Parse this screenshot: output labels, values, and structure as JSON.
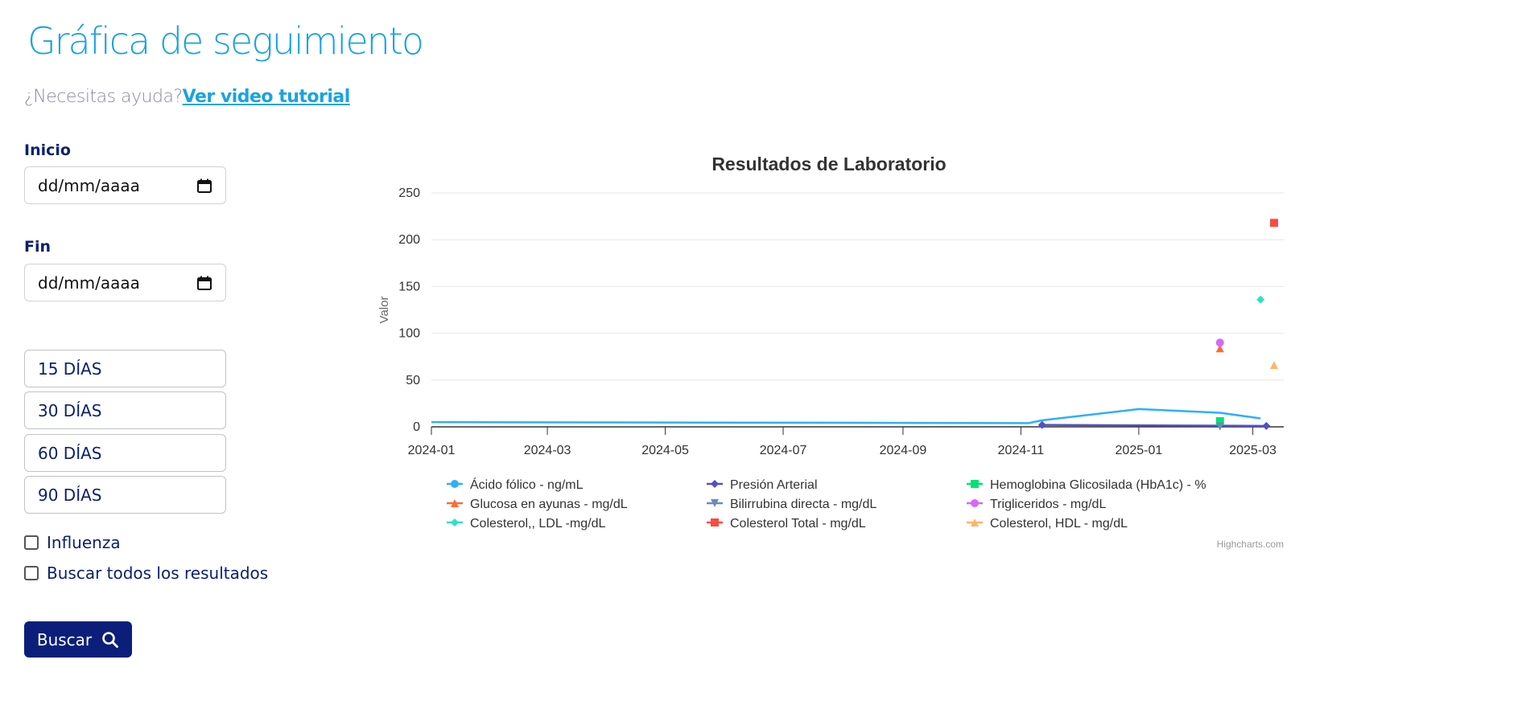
{
  "page": {
    "title": "Gráfica de seguimiento",
    "help_text": "¿Necesitas ayuda?",
    "help_link": "Ver video tutorial"
  },
  "filters": {
    "start_label": "Inicio",
    "start_placeholder": "dd/mm/aaaa",
    "end_label": "Fin",
    "end_placeholder": "dd/mm/aaaa",
    "ranges": [
      "15 DÍAS",
      "30 DÍAS",
      "60 DÍAS",
      "90 DÍAS"
    ],
    "checkboxes": [
      {
        "label": "Influenza",
        "checked": false
      },
      {
        "label": "Buscar todos los resultados",
        "checked": false
      }
    ],
    "search_label": "Buscar",
    "search_icon": "search-icon",
    "calendar_icon": "calendar-icon"
  },
  "chart_data": {
    "type": "line",
    "title": "Resultados de Laboratorio",
    "xlabel": "",
    "ylabel": "Valor",
    "ylim": [
      0,
      250
    ],
    "yticks": [
      0,
      50,
      100,
      150,
      200,
      250
    ],
    "xticks": [
      "2024-01",
      "2024-03",
      "2024-05",
      "2024-07",
      "2024-09",
      "2024-11",
      "2025-01",
      "2025-03"
    ],
    "xlim": [
      "2024-01-01",
      "2025-03-17"
    ],
    "grid": true,
    "legend_position": "bottom",
    "credits": "Highcharts.com",
    "series": [
      {
        "name": "Ácido fólico - ng/mL",
        "color": "#2caffe",
        "marker": "circle",
        "type": "line",
        "points": [
          [
            "2024-01-01",
            5
          ],
          [
            "2024-11-05",
            4
          ],
          [
            "2024-11-12",
            7
          ],
          [
            "2025-01-01",
            19
          ],
          [
            "2025-02-12",
            15
          ],
          [
            "2025-03-05",
            9
          ]
        ]
      },
      {
        "name": "Presión Arterial",
        "color": "#544fc5",
        "marker": "diamond",
        "type": "line",
        "points": [
          [
            "2024-11-12",
            2
          ],
          [
            "2025-03-08",
            1
          ]
        ]
      },
      {
        "name": "Hemoglobina Glicosilada (HbA1c) - %",
        "color": "#00e272",
        "marker": "square",
        "type": "scatter",
        "points": [
          [
            "2025-02-12",
            6
          ]
        ]
      },
      {
        "name": "Glucosa en ayunas - mg/dL",
        "color": "#fe6a35",
        "marker": "triangle",
        "type": "scatter",
        "points": [
          [
            "2025-02-12",
            84
          ]
        ]
      },
      {
        "name": "Bilirrubina directa - mg/dL",
        "color": "#6b8abc",
        "marker": "triangle-down",
        "type": "scatter",
        "points": [
          [
            "2025-02-12",
            0.3
          ]
        ]
      },
      {
        "name": "Trigliceridos - mg/dL",
        "color": "#d568fb",
        "marker": "circle",
        "type": "scatter",
        "points": [
          [
            "2025-02-12",
            90
          ]
        ]
      },
      {
        "name": "Colesterol,, LDL -mg/dL",
        "color": "#2ee0ca",
        "marker": "diamond",
        "type": "scatter",
        "points": [
          [
            "2025-03-05",
            136
          ]
        ]
      },
      {
        "name": "Colesterol Total - mg/dL",
        "color": "#fa4b42",
        "marker": "square",
        "type": "scatter",
        "points": [
          [
            "2025-03-12",
            218
          ]
        ]
      },
      {
        "name": "Colesterol, HDL - mg/dL",
        "color": "#feb56a",
        "marker": "triangle",
        "type": "scatter",
        "points": [
          [
            "2025-03-12",
            66
          ]
        ]
      }
    ]
  }
}
